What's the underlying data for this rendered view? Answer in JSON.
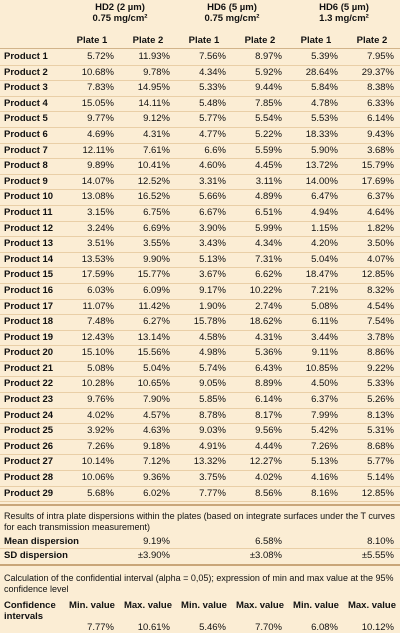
{
  "groups": [
    {
      "name": "HD2 (2 µm)",
      "sub": "0.75 mg/cm²"
    },
    {
      "name": "HD6 (5 µm)",
      "sub": "0.75 mg/cm²"
    },
    {
      "name": "HD6 (5 µm)",
      "sub": "1.3 mg/cm²"
    }
  ],
  "plates": [
    "Plate 1",
    "Plate 2",
    "Plate 1",
    "Plate 2",
    "Plate 1",
    "Plate 2"
  ],
  "rows": [
    {
      "label": "Product 1",
      "values": [
        "5.72%",
        "11.93%",
        "7.56%",
        "8.97%",
        "5.39%",
        "7.95%"
      ]
    },
    {
      "label": "Product 2",
      "values": [
        "10.68%",
        "9.78%",
        "4.34%",
        "5.92%",
        "28.64%",
        "29.37%"
      ]
    },
    {
      "label": "Product 3",
      "values": [
        "7.83%",
        "14.95%",
        "5.33%",
        "9.44%",
        "5.84%",
        "8.38%"
      ]
    },
    {
      "label": "Product 4",
      "values": [
        "15.05%",
        "14.11%",
        "5.48%",
        "7.85%",
        "4.78%",
        "6.33%"
      ]
    },
    {
      "label": "Product 5",
      "values": [
        "9.77%",
        "9.12%",
        "5.77%",
        "5.54%",
        "5.53%",
        "6.14%"
      ]
    },
    {
      "label": "Product 6",
      "values": [
        "4.69%",
        "4.31%",
        "4.77%",
        "5.22%",
        "18.33%",
        "9.43%"
      ]
    },
    {
      "label": "Product 7",
      "values": [
        "12.11%",
        "7.61%",
        "6.6%",
        "5.59%",
        "5.90%",
        "3.68%"
      ]
    },
    {
      "label": "Product 8",
      "values": [
        "9.89%",
        "10.41%",
        "4.60%",
        "4.45%",
        "13.72%",
        "15.79%"
      ]
    },
    {
      "label": "Product 9",
      "values": [
        "14.07%",
        "12.52%",
        "3.31%",
        "3.11%",
        "14.00%",
        "17.69%"
      ]
    },
    {
      "label": "Product 10",
      "values": [
        "13.08%",
        "16.52%",
        "5.66%",
        "4.89%",
        "6.47%",
        "6.37%"
      ]
    },
    {
      "label": "Product 11",
      "values": [
        "3.15%",
        "6.75%",
        "6.67%",
        "6.51%",
        "4.94%",
        "4.64%"
      ]
    },
    {
      "label": "Product 12",
      "values": [
        "3.24%",
        "6.69%",
        "3.90%",
        "5.99%",
        "1.15%",
        "1.82%"
      ]
    },
    {
      "label": "Product 13",
      "values": [
        "3.51%",
        "3.55%",
        "3.43%",
        "4.34%",
        "4.20%",
        "3.50%"
      ]
    },
    {
      "label": "Product 14",
      "values": [
        "13.53%",
        "9.90%",
        "5.13%",
        "7.31%",
        "5.04%",
        "4.07%"
      ]
    },
    {
      "label": "Product 15",
      "values": [
        "17.59%",
        "15.77%",
        "3.67%",
        "6.62%",
        "18.47%",
        "12.85%"
      ]
    },
    {
      "label": "Product 16",
      "values": [
        "6.03%",
        "6.09%",
        "9.17%",
        "10.22%",
        "7.21%",
        "8.32%"
      ]
    },
    {
      "label": "Product 17",
      "values": [
        "11.07%",
        "11.42%",
        "1.90%",
        "2.74%",
        "5.08%",
        "4.54%"
      ]
    },
    {
      "label": "Product 18",
      "values": [
        "7.48%",
        "6.27%",
        "15.78%",
        "18.62%",
        "6.11%",
        "7.54%"
      ]
    },
    {
      "label": "Product 19",
      "values": [
        "12.43%",
        "13.14%",
        "4.58%",
        "4.31%",
        "3.44%",
        "3.78%"
      ]
    },
    {
      "label": "Product 20",
      "values": [
        "15.10%",
        "15.56%",
        "4.98%",
        "5.36%",
        "9.11%",
        "8.86%"
      ]
    },
    {
      "label": "Product 21",
      "values": [
        "5.08%",
        "5.04%",
        "5.74%",
        "6.43%",
        "10.85%",
        "9.22%"
      ]
    },
    {
      "label": "Product 22",
      "values": [
        "10.28%",
        "10.65%",
        "9.05%",
        "8.89%",
        "4.50%",
        "5.33%"
      ]
    },
    {
      "label": "Product 23",
      "values": [
        "9.76%",
        "7.90%",
        "5.85%",
        "6.14%",
        "6.37%",
        "5.26%"
      ]
    },
    {
      "label": "Product 24",
      "values": [
        "4.02%",
        "4.57%",
        "8.78%",
        "8.17%",
        "7.99%",
        "8.13%"
      ]
    },
    {
      "label": "Product 25",
      "values": [
        "3.92%",
        "4.63%",
        "9.03%",
        "9.56%",
        "5.42%",
        "5.31%"
      ]
    },
    {
      "label": "Product 26",
      "values": [
        "7.26%",
        "9.18%",
        "4.91%",
        "4.44%",
        "7.26%",
        "8.68%"
      ]
    },
    {
      "label": "Product 27",
      "values": [
        "10.14%",
        "7.12%",
        "13.32%",
        "12.27%",
        "5.13%",
        "5.77%"
      ]
    },
    {
      "label": "Product 28",
      "values": [
        "10.06%",
        "9.36%",
        "3.75%",
        "4.02%",
        "4.16%",
        "5.14%"
      ]
    },
    {
      "label": "Product 29",
      "values": [
        "5.68%",
        "6.02%",
        "7.77%",
        "8.56%",
        "8.16%",
        "12.85%"
      ]
    }
  ],
  "dispersion_note": "Results of intra plate dispersions within the plates (based on integrate surfaces under the T curves for each transmission measurement)",
  "mean_dispersion": {
    "label": "Mean dispersion",
    "values": [
      "9.19%",
      "6.58%",
      "8.10%"
    ]
  },
  "sd_dispersion": {
    "label": "SD dispersion",
    "values": [
      "±3.90%",
      "±3.08%",
      "±5.55%"
    ]
  },
  "ci_note": "Calculation of the confidential interval (alpha = 0,05); expression of min and max value at the 95% confidence level",
  "ci": {
    "label": "Confidence intervals",
    "headers": [
      "Min. value",
      "Max. value",
      "Min. value",
      "Max. value",
      "Min. value",
      "Max. value"
    ],
    "values": [
      "7.77%",
      "10.61%",
      "5.46%",
      "7.70%",
      "6.08%",
      "10.12%"
    ]
  }
}
